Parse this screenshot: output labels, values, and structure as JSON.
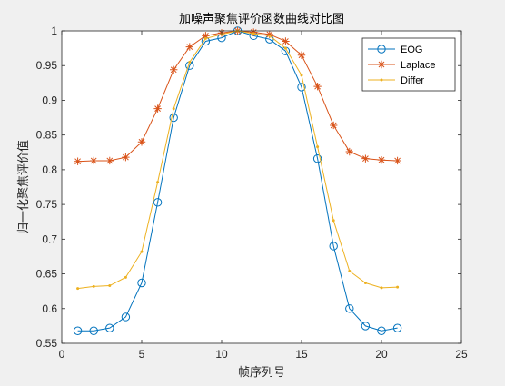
{
  "chart_data": {
    "type": "line",
    "title": "加噪声聚焦评价函数曲线对比图",
    "xlabel": "帧序列号",
    "ylabel": "归一化聚焦评价值",
    "xlim": [
      0,
      25
    ],
    "ylim": [
      0.55,
      1
    ],
    "xticks": [
      0,
      5,
      10,
      15,
      20,
      25
    ],
    "yticks": [
      0.55,
      0.6,
      0.65,
      0.7,
      0.75,
      0.8,
      0.85,
      0.9,
      0.95,
      1
    ],
    "xtick_labels": [
      "0",
      "5",
      "10",
      "15",
      "20",
      "25"
    ],
    "ytick_labels": [
      "0.55",
      "0.6",
      "0.65",
      "0.7",
      "0.75",
      "0.8",
      "0.85",
      "0.9",
      "0.95",
      "1"
    ],
    "grid": false,
    "legend_position": "top-right",
    "x": [
      1,
      2,
      3,
      4,
      5,
      6,
      7,
      8,
      9,
      10,
      11,
      12,
      13,
      14,
      15,
      16,
      17,
      18,
      19,
      20,
      21
    ],
    "series": [
      {
        "name": "EOG",
        "color": "#0072BD",
        "marker": "circle",
        "values": [
          0.568,
          0.568,
          0.572,
          0.588,
          0.637,
          0.753,
          0.875,
          0.95,
          0.985,
          0.99,
          1.0,
          0.993,
          0.988,
          0.971,
          0.919,
          0.816,
          0.69,
          0.6,
          0.575,
          0.568,
          0.572
        ]
      },
      {
        "name": "Laplace",
        "color": "#D95319",
        "marker": "asterisk",
        "values": [
          0.812,
          0.813,
          0.813,
          0.818,
          0.84,
          0.888,
          0.944,
          0.977,
          0.993,
          0.997,
          1.0,
          0.998,
          0.995,
          0.985,
          0.965,
          0.92,
          0.864,
          0.826,
          0.816,
          0.814,
          0.813
        ]
      },
      {
        "name": "Differ",
        "color": "#EDB120",
        "marker": "point",
        "values": [
          0.629,
          0.632,
          0.633,
          0.645,
          0.682,
          0.782,
          0.888,
          0.955,
          0.989,
          0.995,
          1.0,
          0.996,
          0.993,
          0.975,
          0.936,
          0.833,
          0.727,
          0.654,
          0.637,
          0.63,
          0.631
        ]
      }
    ]
  }
}
